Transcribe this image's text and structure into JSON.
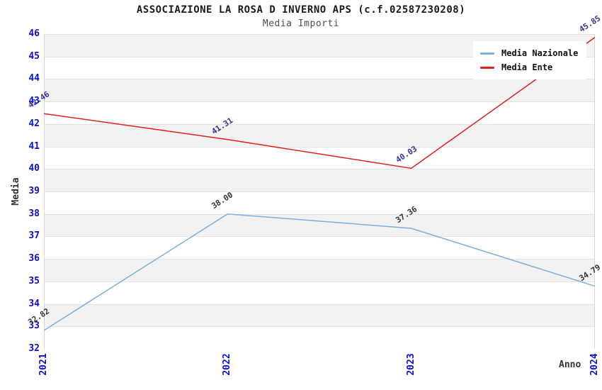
{
  "header": {
    "title": "ASSOCIAZIONE LA ROSA D INVERNO APS (c.f.02587230208)",
    "subtitle": "Media Importi"
  },
  "chart_data": {
    "type": "line",
    "title": "ASSOCIAZIONE LA ROSA D INVERNO APS (c.f.02587230208)",
    "subtitle": "Media Importi",
    "xlabel": "Anno",
    "ylabel": "Media",
    "x_categories": [
      "2021",
      "2022",
      "2023",
      "2024"
    ],
    "series": [
      {
        "name": "Media Nazionale",
        "values": [
          32.82,
          38.0,
          37.36,
          34.79
        ],
        "color": "#7db0de",
        "label_color": "#333333"
      },
      {
        "name": "Media Ente",
        "values": [
          42.46,
          41.31,
          40.03,
          45.85
        ],
        "color": "#e01f1f",
        "label_color": "#333399"
      }
    ],
    "ylim": [
      32,
      46
    ],
    "y_tick_step": 1,
    "y_tick_color": "#0b0bdd",
    "x_tick_color": "#0b0bdd",
    "grid": "horizontal",
    "band_color": "#f2f2f2",
    "gridline_color": "#e2e2e2",
    "plot_border_color": "#d5d5d5",
    "legend_position": "top-right",
    "legend_entries": [
      "Media Nazionale",
      "Media Ente"
    ]
  }
}
